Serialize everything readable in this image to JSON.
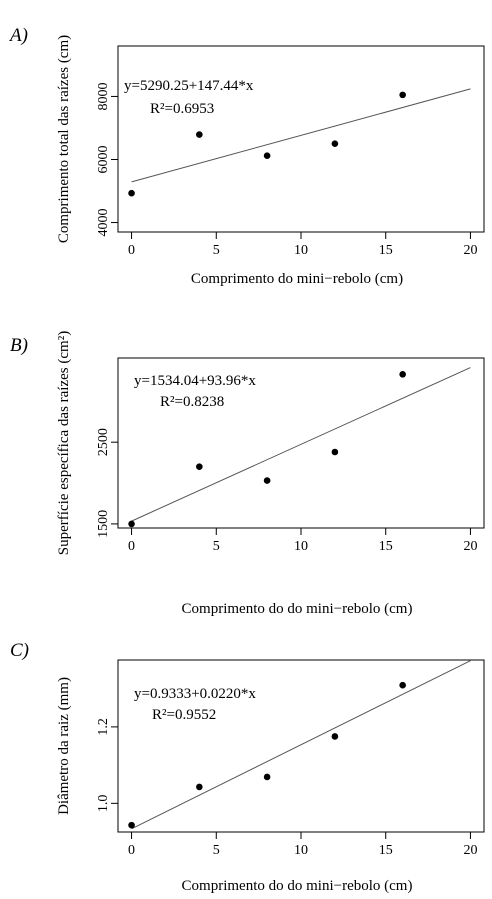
{
  "chart_data": [
    {
      "type": "scatter",
      "panel_label": "A)",
      "xlabel": "Comprimento do mini−rebolo (cm)",
      "ylabel": "Comprimento total das raízes (cm)",
      "xlim": [
        -0.8,
        20.8
      ],
      "ylim": [
        3700,
        9600
      ],
      "xticks": [
        0,
        5,
        10,
        15,
        20
      ],
      "yticks": [
        4000,
        6000,
        8000
      ],
      "points": [
        {
          "x": 0,
          "y": 4930
        },
        {
          "x": 4,
          "y": 6790
        },
        {
          "x": 8,
          "y": 6120
        },
        {
          "x": 12,
          "y": 6500
        },
        {
          "x": 16,
          "y": 8050
        }
      ],
      "regression": {
        "intercept": 5290.25,
        "slope": 147.44,
        "x_range": [
          0,
          20
        ]
      },
      "equation": "y=5290.25+147.44*x",
      "r2": "R²=0.6953"
    },
    {
      "type": "scatter",
      "panel_label": "B)",
      "xlabel": "Comprimento do do mini−rebolo (cm)",
      "ylabel": "Superfície específica das raízes (cm²)",
      "xlim": [
        -0.8,
        20.8
      ],
      "ylim": [
        1450,
        3530
      ],
      "xticks": [
        0,
        5,
        10,
        15,
        20
      ],
      "yticks": [
        1500,
        2500
      ],
      "points": [
        {
          "x": 0,
          "y": 1500
        },
        {
          "x": 4,
          "y": 2200
        },
        {
          "x": 8,
          "y": 2030
        },
        {
          "x": 12,
          "y": 2380
        },
        {
          "x": 16,
          "y": 3330
        }
      ],
      "regression": {
        "intercept": 1534.04,
        "slope": 93.96,
        "x_range": [
          0,
          20
        ]
      },
      "equation": "y=1534.04+93.96*x",
      "r2": "R²=0.8238"
    },
    {
      "type": "scatter",
      "panel_label": "C)",
      "xlabel": "Comprimento do do mini−rebolo (cm)",
      "ylabel": "Diâmetro da raiz (mm)",
      "xlim": [
        -0.8,
        20.8
      ],
      "ylim": [
        0.925,
        1.375
      ],
      "xticks": [
        0,
        5,
        10,
        15,
        20
      ],
      "yticks": [
        1.0,
        1.2
      ],
      "ytick_labels": [
        "1.0",
        "1.2"
      ],
      "points": [
        {
          "x": 0,
          "y": 0.943
        },
        {
          "x": 4,
          "y": 1.043
        },
        {
          "x": 8,
          "y": 1.069
        },
        {
          "x": 12,
          "y": 1.175
        },
        {
          "x": 16,
          "y": 1.309
        }
      ],
      "regression": {
        "intercept": 0.9333,
        "slope": 0.022,
        "x_range": [
          0,
          20
        ]
      },
      "equation": "y=0.9333+0.0220*x",
      "r2": "R²=0.9552"
    }
  ]
}
